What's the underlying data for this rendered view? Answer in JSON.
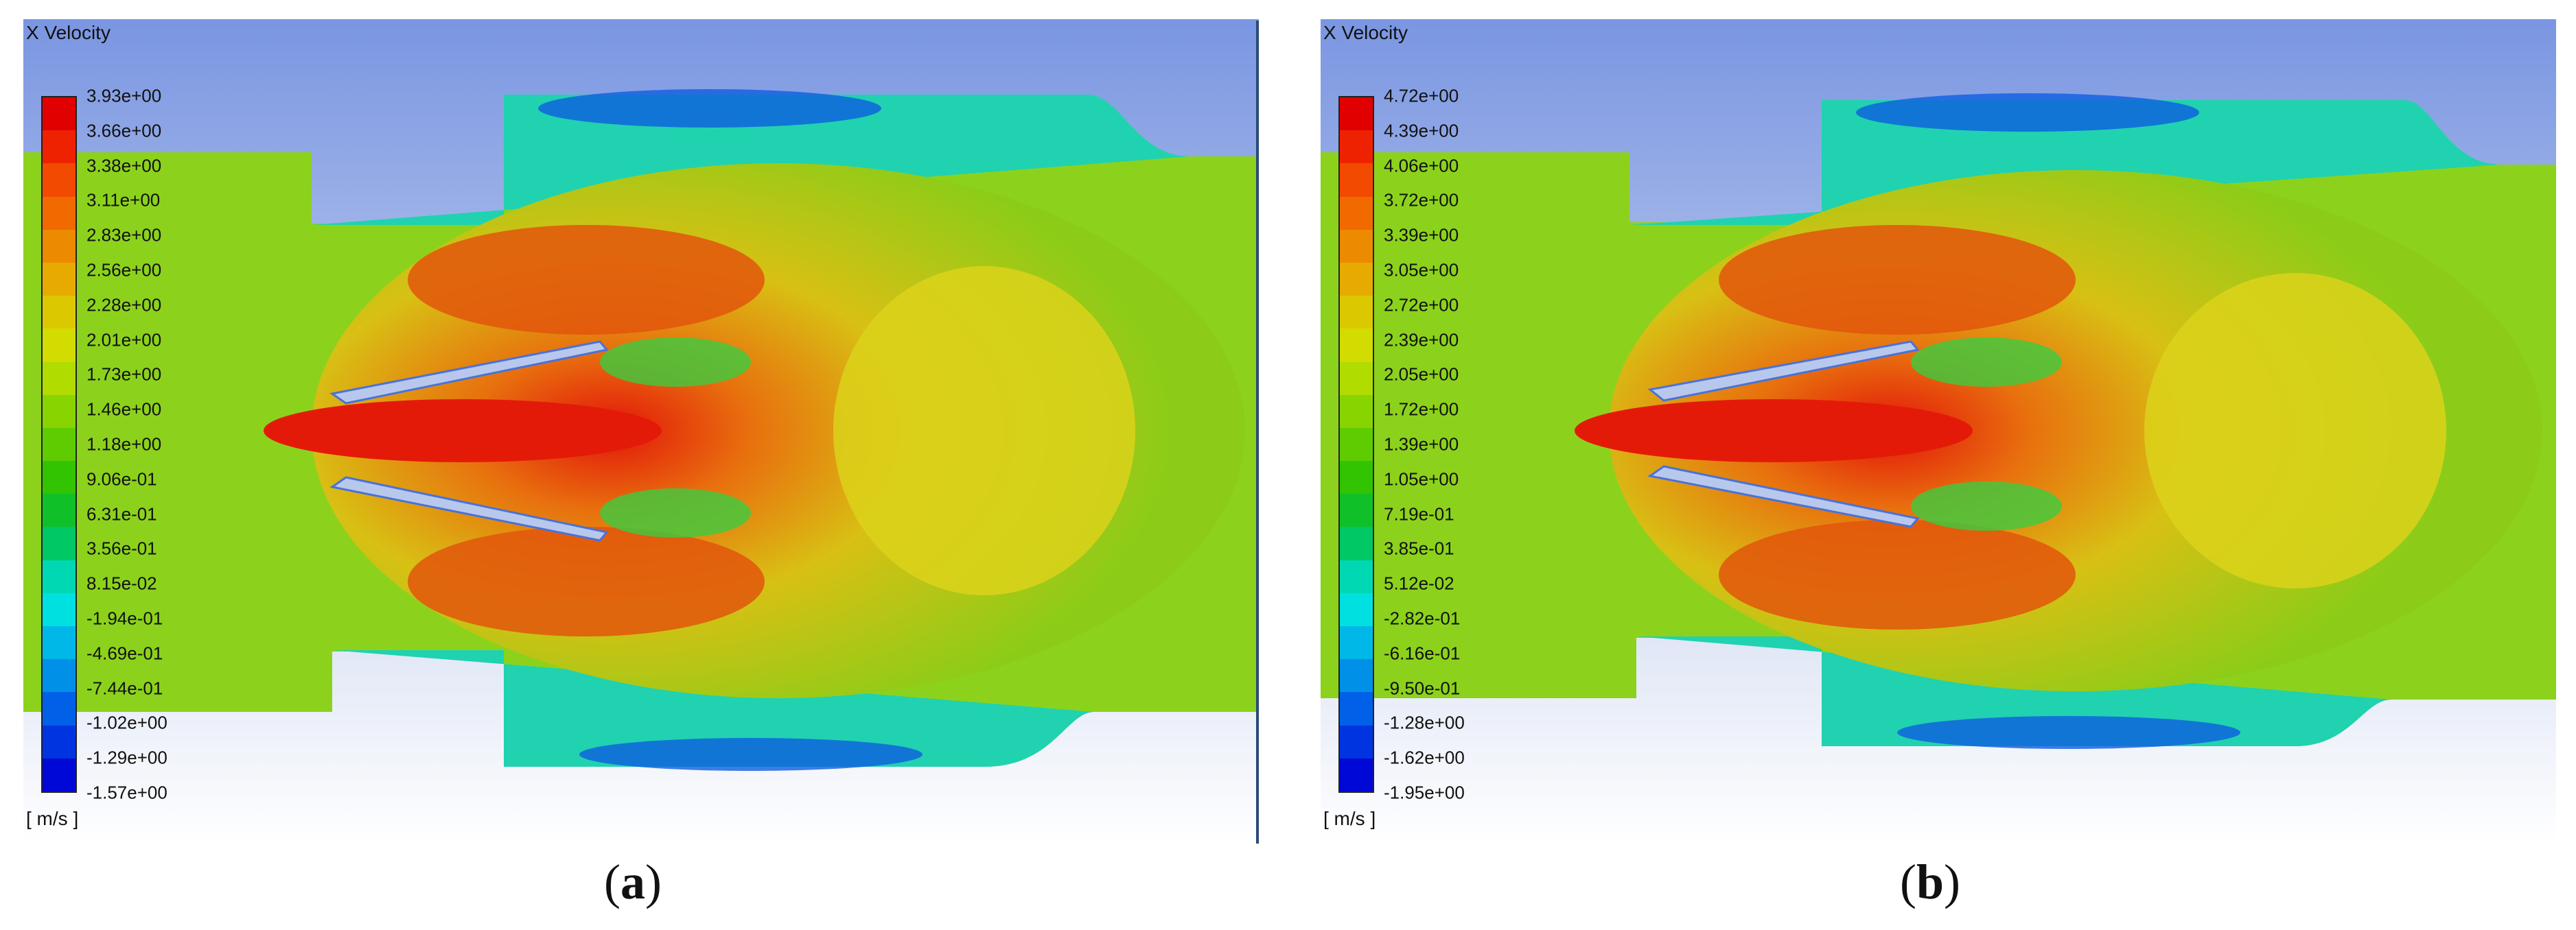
{
  "panels": [
    {
      "id": "a",
      "title": "X Velocity",
      "unit": "[ m/s ]",
      "caption_letter": "a",
      "colorbar_ticks": [
        "3.93e+00",
        "3.66e+00",
        "3.38e+00",
        "3.11e+00",
        "2.83e+00",
        "2.56e+00",
        "2.28e+00",
        "2.01e+00",
        "1.73e+00",
        "1.46e+00",
        "1.18e+00",
        "9.06e-01",
        "6.31e-01",
        "3.56e-01",
        "8.15e-02",
        "-1.94e-01",
        "-4.69e-01",
        "-7.44e-01",
        "-1.02e+00",
        "-1.29e+00",
        "-1.57e+00"
      ]
    },
    {
      "id": "b",
      "title": "X Velocity",
      "unit": "[ m/s ]",
      "caption_letter": "b",
      "colorbar_ticks": [
        "4.72e+00",
        "4.39e+00",
        "4.06e+00",
        "3.72e+00",
        "3.39e+00",
        "3.05e+00",
        "2.72e+00",
        "2.39e+00",
        "2.05e+00",
        "1.72e+00",
        "1.39e+00",
        "1.05e+00",
        "7.19e-01",
        "3.85e-01",
        "5.12e-02",
        "-2.82e-01",
        "-6.16e-01",
        "-9.50e-01",
        "-1.28e+00",
        "-1.62e+00",
        "-1.95e+00"
      ]
    }
  ],
  "colormap": [
    "#e00000",
    "#ee2200",
    "#f24a00",
    "#f06a00",
    "#ec8a00",
    "#e6aa00",
    "#dcc800",
    "#d2dc00",
    "#b0dc00",
    "#88d400",
    "#5ecc00",
    "#32c400",
    "#10c028",
    "#00c864",
    "#00d8b4",
    "#00e0e0",
    "#00b8e8",
    "#0090e8",
    "#0060e8",
    "#0034e0",
    "#0008d8"
  ]
}
